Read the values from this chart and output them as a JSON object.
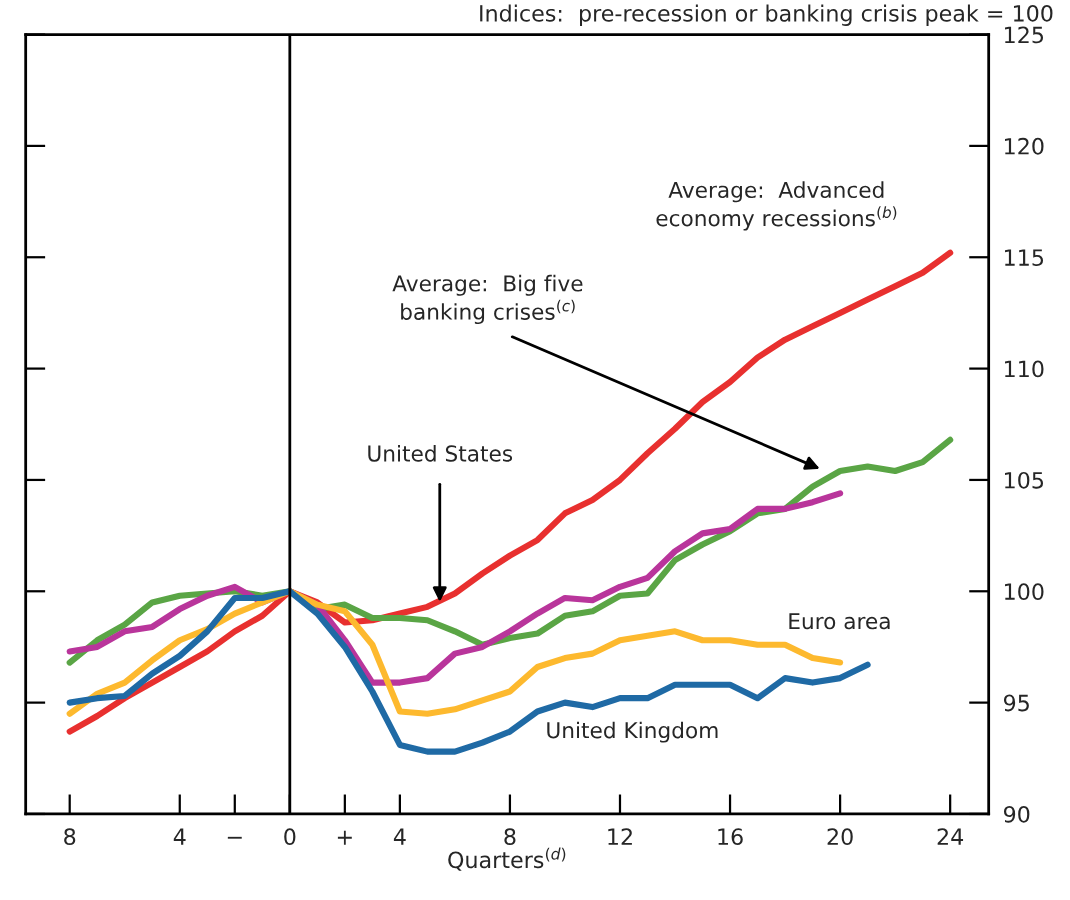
{
  "chart_data": {
    "type": "line",
    "xlabel": "Quarters$^{(d)}$",
    "ylabel": "Indices:  pre-recession or banking crisis peak = 100",
    "x": [
      -8,
      -7,
      -6,
      -5,
      -4,
      -3,
      -2,
      -1,
      0,
      1,
      2,
      3,
      4,
      5,
      6,
      7,
      8,
      9,
      10,
      11,
      12,
      13,
      14,
      15,
      16,
      17,
      18,
      19,
      20,
      21,
      22,
      23,
      24
    ],
    "series": [
      {
        "name": "Average:  Advanced economy recessions$^{(b)}$",
        "color": "#e8302f",
        "values": [
          93.7,
          94.4,
          95.2,
          95.9,
          96.6,
          97.3,
          98.2,
          98.9,
          100,
          99.5,
          98.6,
          98.7,
          99.0,
          99.3,
          99.9,
          100.8,
          101.6,
          102.3,
          103.5,
          104.1,
          105.0,
          106.2,
          107.3,
          108.5,
          109.4,
          110.5,
          111.3,
          111.9,
          112.5,
          113.1,
          113.7,
          114.3,
          115.2
        ]
      },
      {
        "name": "Average:  Big five banking crises$^{(c)}$",
        "color": "#5aa545",
        "values": [
          96.8,
          97.8,
          98.5,
          99.5,
          99.8,
          99.9,
          100.0,
          99.8,
          100,
          99.2,
          99.4,
          98.8,
          98.8,
          98.7,
          98.2,
          97.6,
          97.9,
          98.1,
          98.9,
          99.1,
          99.8,
          99.9,
          101.4,
          102.1,
          102.7,
          103.5,
          103.7,
          104.7,
          105.4,
          105.6,
          105.4,
          105.8,
          106.8
        ]
      },
      {
        "name": "United States",
        "color": "#b9359b",
        "values": [
          97.3,
          97.5,
          98.2,
          98.4,
          99.2,
          99.8,
          100.2,
          99.5,
          100,
          99.4,
          97.8,
          95.9,
          95.9,
          96.1,
          97.2,
          97.5,
          98.2,
          99.0,
          99.7,
          99.6,
          100.2,
          100.6,
          101.8,
          102.6,
          102.8,
          103.7,
          103.7,
          104.0,
          104.4,
          null,
          null,
          null,
          null
        ]
      },
      {
        "name": "Euro area",
        "color": "#fdb92e",
        "values": [
          94.5,
          95.4,
          95.9,
          96.9,
          97.8,
          98.3,
          99.0,
          99.5,
          100,
          99.4,
          99.1,
          97.6,
          94.6,
          94.5,
          94.7,
          95.1,
          95.5,
          96.6,
          97.0,
          97.2,
          97.8,
          98.0,
          98.2,
          97.8,
          97.8,
          97.6,
          97.6,
          97.0,
          96.8,
          null,
          null,
          null,
          null
        ]
      },
      {
        "name": "United Kingdom",
        "color": "#1f6aa5",
        "values": [
          95.0,
          95.2,
          95.3,
          96.3,
          97.1,
          98.2,
          99.7,
          99.7,
          100,
          99.0,
          97.5,
          95.5,
          93.1,
          92.8,
          92.8,
          93.2,
          93.7,
          94.6,
          95.0,
          94.8,
          95.2,
          95.2,
          95.8,
          95.8,
          95.8,
          95.2,
          96.1,
          95.9,
          96.1,
          96.7,
          null,
          null,
          null
        ]
      }
    ],
    "xlim": [
      -9.6,
      25.4
    ],
    "ylim": [
      90,
      125
    ],
    "xticks": [
      {
        "value": -8,
        "label": "8"
      },
      {
        "value": -4,
        "label": "4"
      },
      {
        "value": -2,
        "label": "−"
      },
      0,
      {
        "value": 2,
        "label": "+"
      },
      4,
      8,
      12,
      16,
      20,
      24
    ],
    "yticks": [
      90,
      95,
      100,
      105,
      110,
      115,
      120,
      125
    ],
    "ref_lines": [
      {
        "axis": "x",
        "value": 0,
        "color": "#000000"
      }
    ],
    "grid": false,
    "legend": false,
    "line_style": "solid"
  }
}
